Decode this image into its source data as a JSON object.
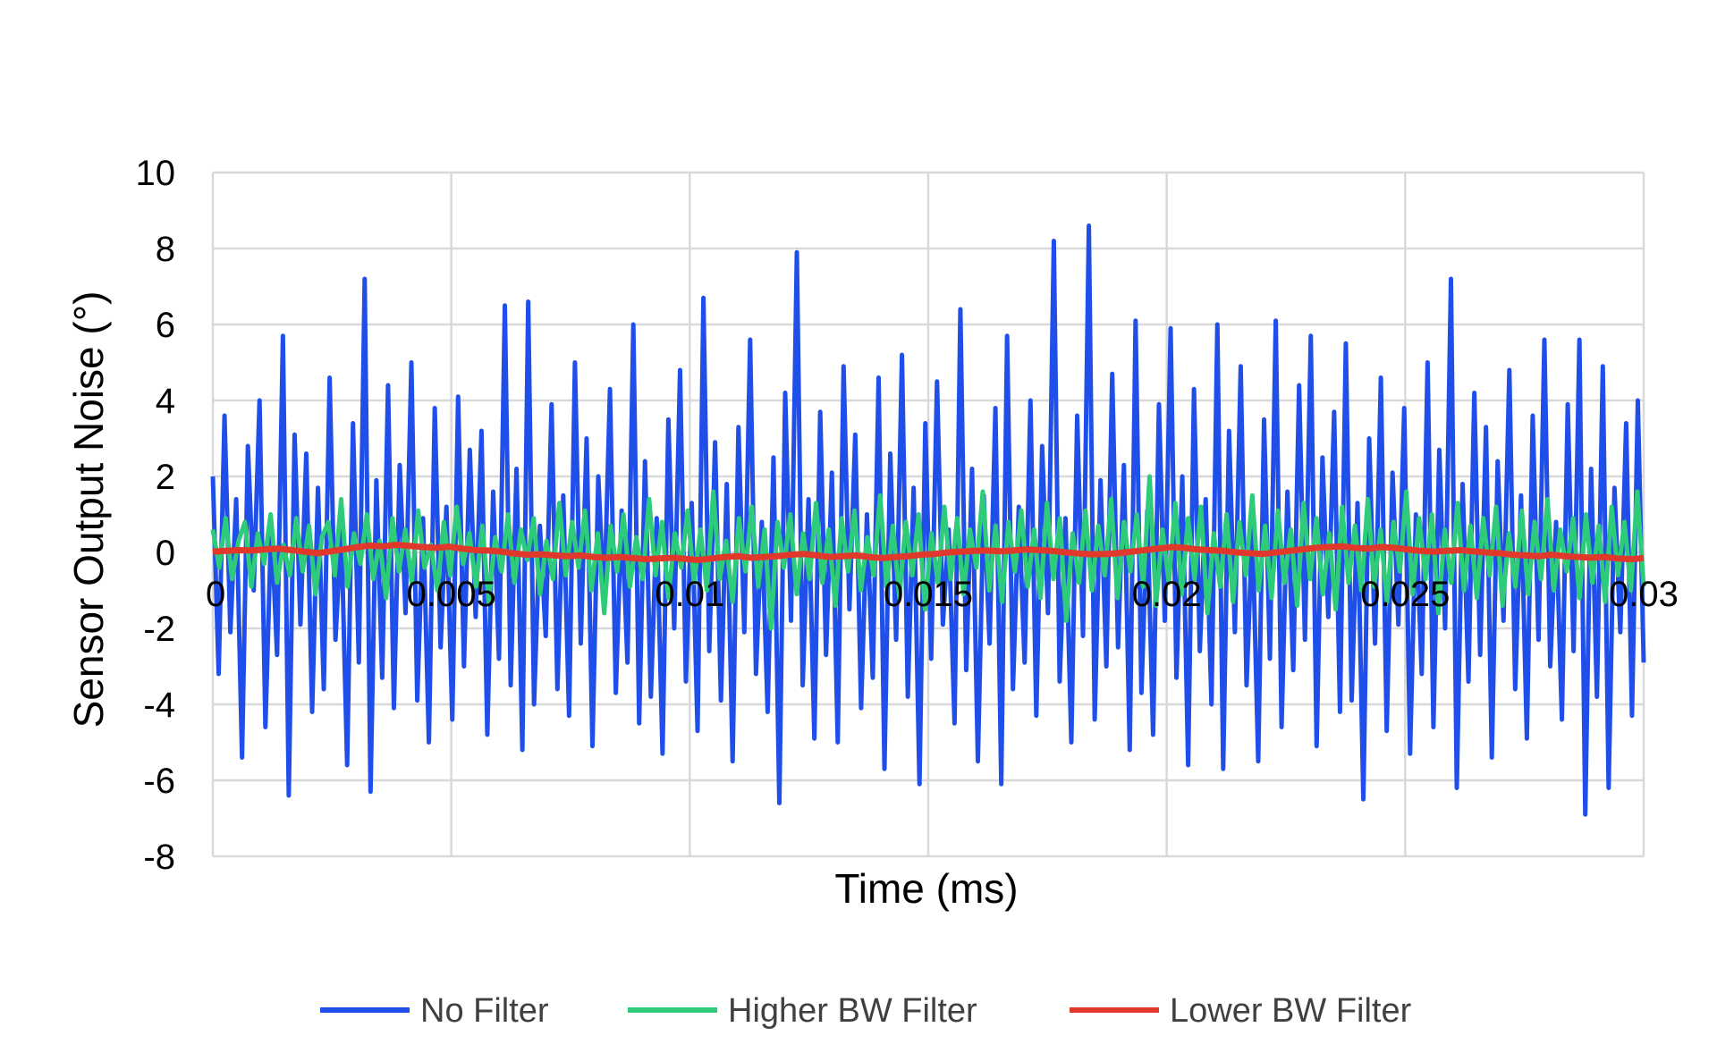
{
  "chart_data": {
    "type": "line",
    "title": "",
    "xlabel": "Time (ms)",
    "ylabel": "Sensor Output Noise (°)",
    "xlim": [
      0,
      0.03
    ],
    "ylim": [
      -8,
      10
    ],
    "x_ticks": [
      0,
      0.005,
      0.01,
      0.015,
      0.02,
      0.025,
      0.03
    ],
    "x_tick_labels": [
      "0",
      "0.005",
      "0.01",
      "0.015",
      "0.02",
      "0.025",
      "0.03"
    ],
    "y_ticks": [
      -8,
      -6,
      -4,
      -2,
      0,
      2,
      4,
      6,
      8,
      10
    ],
    "y_tick_labels": [
      "-8",
      "-6",
      "-4",
      "-2",
      "0",
      "2",
      "4",
      "6",
      "8",
      "10"
    ],
    "grid": true,
    "legend_position": "bottom",
    "series": [
      {
        "name": "No Filter",
        "color": "#1f4fe8",
        "x_start": 0,
        "x_end": 0.03,
        "values": [
          2.0,
          -3.2,
          3.6,
          -2.1,
          1.4,
          -5.4,
          2.8,
          -1.0,
          4.0,
          -4.6,
          0.8,
          -2.7,
          5.7,
          -6.4,
          3.1,
          -1.9,
          2.6,
          -4.2,
          1.7,
          -3.6,
          4.6,
          -2.3,
          0.6,
          -5.6,
          3.4,
          -2.9,
          7.2,
          -6.3,
          1.9,
          -3.3,
          4.4,
          -4.1,
          2.3,
          -1.6,
          5.0,
          -3.9,
          0.9,
          -5.0,
          3.8,
          -2.5,
          1.2,
          -4.4,
          4.1,
          -3.0,
          2.7,
          -1.7,
          3.2,
          -4.8,
          1.6,
          -2.8,
          6.5,
          -3.5,
          2.2,
          -5.2,
          6.6,
          -4.0,
          0.7,
          -2.2,
          3.9,
          -3.6,
          1.5,
          -4.3,
          5.0,
          -2.4,
          3.0,
          -5.1,
          2.0,
          -1.4,
          4.3,
          -3.7,
          1.1,
          -2.9,
          6.0,
          -4.5,
          2.4,
          -3.8,
          0.9,
          -5.3,
          3.5,
          -2.0,
          4.8,
          -3.4,
          1.3,
          -4.7,
          6.7,
          -2.6,
          2.9,
          -3.9,
          1.8,
          -5.5,
          3.3,
          -2.1,
          5.6,
          -3.2,
          0.8,
          -4.2,
          2.5,
          -6.6,
          4.2,
          -1.8,
          7.9,
          -3.5,
          1.4,
          -4.9,
          3.7,
          -2.7,
          2.1,
          -5.0,
          4.9,
          -1.5,
          3.1,
          -4.1,
          1.0,
          -3.3,
          4.6,
          -5.7,
          2.6,
          -2.3,
          5.2,
          -3.8,
          1.7,
          -6.1,
          3.4,
          -2.8,
          4.5,
          -1.9,
          0.6,
          -4.5,
          6.4,
          -3.1,
          2.2,
          -5.5,
          1.5,
          -2.4,
          3.8,
          -6.1,
          5.7,
          -3.6,
          1.2,
          -2.9,
          4.0,
          -4.3,
          2.8,
          -1.6,
          8.2,
          -3.4,
          0.9,
          -5.0,
          3.6,
          -2.2,
          8.6,
          -4.4,
          1.9,
          -3.0,
          4.7,
          -2.5,
          2.3,
          -5.2,
          6.1,
          -3.7,
          1.1,
          -4.8,
          3.9,
          -1.8,
          5.9,
          -3.3,
          2.0,
          -5.6,
          4.3,
          -2.6,
          1.4,
          -4.0,
          6.0,
          -5.7,
          3.2,
          -2.1,
          4.9,
          -3.5,
          0.7,
          -5.5,
          3.5,
          -2.8,
          6.1,
          -4.6,
          1.6,
          -3.1,
          4.4,
          -2.3,
          5.7,
          -5.1,
          2.5,
          -1.7,
          3.7,
          -4.2,
          5.5,
          -3.9,
          1.3,
          -6.5,
          3.0,
          -2.4,
          4.6,
          -4.7,
          2.1,
          -1.9,
          3.8,
          -5.3,
          1.0,
          -3.2,
          5.0,
          -4.6,
          2.7,
          -2.0,
          7.2,
          -6.2,
          1.8,
          -3.4,
          4.2,
          -2.7,
          3.3,
          -5.4,
          2.4,
          -1.8,
          4.8,
          -3.6,
          1.5,
          -4.9,
          3.6,
          -2.3,
          5.6,
          -3.0,
          0.8,
          -4.4,
          3.9,
          -2.6,
          5.6,
          -6.9,
          2.2,
          -3.8,
          4.9,
          -6.2,
          1.7,
          -2.1,
          3.4,
          -4.3,
          4.0,
          -2.9
        ]
      },
      {
        "name": "Higher BW Filter",
        "color": "#2ecc7a",
        "x_start": 0,
        "x_end": 0.03,
        "values": [
          0.6,
          -0.4,
          0.9,
          -0.7,
          0.3,
          0.8,
          -0.9,
          0.5,
          -0.3,
          1.0,
          -0.8,
          0.2,
          -0.6,
          0.9,
          -0.5,
          0.7,
          -1.1,
          0.4,
          0.8,
          -0.6,
          1.4,
          -0.9,
          0.5,
          -0.3,
          1.0,
          -0.7,
          0.3,
          -1.2,
          0.9,
          -0.5,
          0.6,
          -0.8,
          1.1,
          -0.4,
          0.2,
          -1.0,
          0.8,
          -0.6,
          1.2,
          -0.3,
          0.5,
          -0.9,
          0.7,
          -1.3,
          0.4,
          -0.5,
          1.0,
          -0.8,
          0.6,
          -0.2,
          0.9,
          -1.1,
          0.3,
          -0.7,
          1.3,
          -0.6,
          0.8,
          -0.4,
          1.1,
          -1.0,
          0.5,
          -1.6,
          0.7,
          -0.5,
          1.0,
          -0.9,
          0.4,
          -0.7,
          1.4,
          -0.6,
          0.8,
          -1.2,
          0.5,
          -0.4,
          1.1,
          -0.8,
          0.6,
          -1.0,
          1.6,
          -0.7,
          0.3,
          -1.3,
          0.9,
          -0.5,
          1.2,
          -0.9,
          0.6,
          -2.0,
          0.8,
          -0.4,
          1.0,
          -1.1,
          0.5,
          -0.7,
          1.3,
          -0.8,
          0.6,
          -1.4,
          0.9,
          -0.5,
          1.1,
          -1.0,
          0.4,
          -0.6,
          1.5,
          -0.9,
          0.7,
          -1.2,
          0.8,
          -0.6,
          1.0,
          -1.5,
          0.5,
          -0.8,
          1.2,
          -0.7,
          0.9,
          -1.1,
          0.6,
          -0.4,
          1.6,
          -1.0,
          0.7,
          -1.3,
          0.8,
          -0.5,
          1.1,
          -0.9,
          0.6,
          -1.2,
          1.3,
          -0.7,
          0.9,
          -1.8,
          0.5,
          -0.8,
          1.1,
          -1.0,
          0.7,
          -0.6,
          1.4,
          -1.2,
          0.8,
          -0.5,
          1.0,
          -0.9,
          2.0,
          -1.4,
          0.6,
          -0.8,
          1.3,
          -1.1,
          0.9,
          -0.7,
          1.2,
          -1.6,
          0.5,
          -0.9,
          1.0,
          -1.3,
          0.8,
          -0.6,
          1.5,
          -1.0,
          0.7,
          -1.2,
          1.1,
          -0.8,
          0.6,
          -1.4,
          1.3,
          -0.7,
          0.9,
          -1.1,
          0.5,
          -1.5,
          1.2,
          -0.8,
          0.7,
          -1.0,
          1.4,
          -0.9,
          0.6,
          -1.3,
          0.8,
          -0.5,
          1.6,
          -1.1,
          0.9,
          -0.7,
          1.0,
          -1.6,
          0.6,
          -0.8,
          1.3,
          -1.0,
          0.7,
          -1.2,
          0.9,
          -0.6,
          1.2,
          -1.4,
          0.5,
          -0.9,
          1.1,
          -1.1,
          0.8,
          -0.7,
          1.4,
          -1.0,
          0.6,
          -0.5,
          0.9,
          -1.2,
          1.0,
          -0.8,
          0.7,
          -1.3,
          1.2,
          -0.6,
          0.8,
          -1.0,
          1.6,
          -0.9
        ]
      },
      {
        "name": "Lower BW Filter",
        "color": "#e0392b",
        "x_start": 0,
        "x_end": 0.03,
        "values": [
          0.02,
          0.04,
          0.06,
          0.05,
          0.08,
          0.1,
          0.06,
          0.02,
          -0.02,
          0.03,
          0.08,
          0.14,
          0.18,
          0.16,
          0.2,
          0.17,
          0.14,
          0.12,
          0.15,
          0.1,
          0.06,
          0.05,
          0.02,
          -0.03,
          -0.06,
          -0.05,
          -0.08,
          -0.1,
          -0.08,
          -0.12,
          -0.14,
          -0.12,
          -0.15,
          -0.18,
          -0.16,
          -0.14,
          -0.17,
          -0.2,
          -0.16,
          -0.12,
          -0.1,
          -0.14,
          -0.12,
          -0.1,
          -0.06,
          -0.04,
          -0.08,
          -0.12,
          -0.1,
          -0.08,
          -0.12,
          -0.15,
          -0.12,
          -0.1,
          -0.06,
          -0.04,
          0.0,
          0.02,
          0.04,
          0.05,
          0.03,
          0.05,
          0.08,
          0.06,
          0.04,
          0.0,
          -0.03,
          -0.05,
          -0.04,
          -0.02,
          0.02,
          0.06,
          0.1,
          0.14,
          0.12,
          0.08,
          0.06,
          0.04,
          0.0,
          -0.02,
          -0.04,
          0.0,
          0.04,
          0.08,
          0.12,
          0.14,
          0.16,
          0.12,
          0.1,
          0.14,
          0.12,
          0.08,
          0.04,
          0.02,
          0.04,
          0.06,
          0.03,
          0.0,
          -0.02,
          -0.06,
          -0.08,
          -0.1,
          -0.06,
          -0.1,
          -0.12,
          -0.14,
          -0.12,
          -0.16,
          -0.18,
          -0.15
        ]
      }
    ]
  }
}
